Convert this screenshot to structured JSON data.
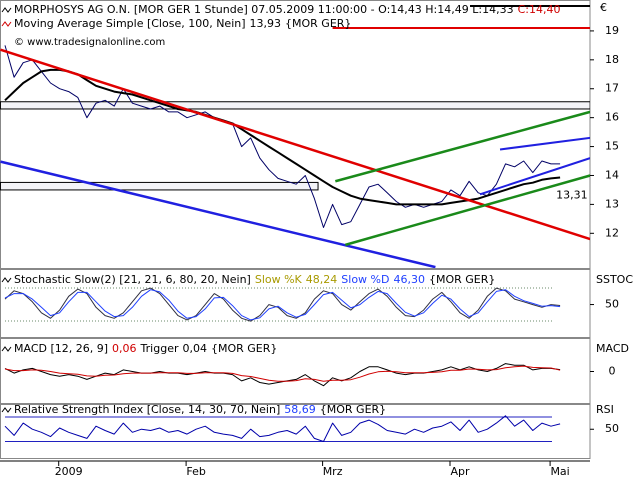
{
  "chart_data": [
    {
      "type": "line",
      "title": "MORPHOSYS AG O.N. [MOR GER  1 Stunde] 07.05.2009 11:00:00 - O:14,43 H:14,49 L:14,33",
      "close_label": "C:14,40",
      "close_color": "#d00000",
      "watermark": "© www.tradesignalonline.com",
      "axis_label": "€",
      "categories": [
        null,
        null,
        null,
        null,
        null,
        null,
        null,
        "2009",
        null,
        null,
        null,
        null,
        null,
        null,
        null,
        null,
        null,
        null,
        null,
        null,
        null,
        "Feb",
        null,
        null,
        null,
        null,
        null,
        null,
        null,
        null,
        null,
        null,
        null,
        null,
        null,
        null,
        "Mrz",
        null,
        null,
        null,
        null,
        null,
        null,
        null,
        null,
        null,
        null,
        null,
        null,
        null,
        "Apr",
        null,
        null,
        null,
        null,
        null,
        null,
        null,
        null,
        null,
        null,
        "Mai"
      ],
      "ylim": [
        10.8,
        20
      ],
      "yticks": [
        12,
        13,
        14,
        15,
        16,
        17,
        18,
        19
      ],
      "series": [
        {
          "color": "#000066",
          "width": 1,
          "values": [
            18.5,
            17.4,
            17.9,
            18.0,
            17.6,
            17.2,
            17.0,
            16.9,
            16.7,
            16.0,
            16.5,
            16.6,
            16.4,
            17.0,
            16.5,
            16.4,
            16.3,
            16.4,
            16.2,
            16.2,
            16.0,
            16.1,
            16.2,
            16.0,
            15.9,
            15.8,
            15.0,
            15.3,
            14.6,
            14.2,
            13.9,
            13.8,
            13.7,
            14.0,
            13.2,
            12.2,
            13.0,
            12.3,
            12.4,
            13.0,
            13.6,
            13.7,
            13.4,
            13.1,
            12.9,
            13.0,
            12.9,
            13.0,
            13.1,
            13.5,
            13.3,
            13.8,
            13.4,
            13.3,
            13.7,
            14.4,
            14.3,
            14.5,
            14.1,
            14.5,
            14.4,
            14.4
          ]
        },
        {
          "name": "Moving Average Simple [Close, 100, Nein]",
          "last_label": "13,93",
          "source": "{MOR GER}",
          "color": "#000000",
          "legend_color": "#000000",
          "width": 2,
          "values": [
            16.6,
            16.9,
            17.2,
            17.4,
            17.6,
            17.65,
            17.65,
            17.6,
            17.5,
            17.3,
            17.1,
            17.0,
            16.9,
            16.85,
            16.8,
            16.7,
            16.6,
            16.5,
            16.4,
            16.3,
            16.25,
            16.2,
            16.1,
            16.0,
            15.9,
            15.8,
            15.6,
            15.4,
            15.2,
            15.0,
            14.8,
            14.6,
            14.4,
            14.2,
            14.0,
            13.8,
            13.6,
            13.45,
            13.3,
            13.2,
            13.15,
            13.1,
            13.05,
            13.0,
            13.0,
            13.0,
            13.0,
            13.0,
            13.0,
            13.05,
            13.1,
            13.15,
            13.2,
            13.3,
            13.4,
            13.5,
            13.6,
            13.7,
            13.75,
            13.85,
            13.9,
            13.93
          ]
        }
      ],
      "bands": [
        {
          "x": [
            -0.5,
            64.3
          ],
          "values": [
            16.55,
            16.3
          ]
        },
        {
          "x": [
            -0.5,
            34.4
          ],
          "values": [
            13.76,
            13.5
          ]
        }
      ],
      "trendlines": [
        {
          "color": "#e00000",
          "width": 2.5,
          "x": [
            -0.5,
            64.3
          ],
          "values": [
            18.35,
            11.8
          ]
        },
        {
          "color": "#2020e0",
          "width": 2.5,
          "x": [
            -0.5,
            47.3
          ],
          "values": [
            14.48,
            10.83
          ]
        },
        {
          "color": "#1a8a1a",
          "width": 2.5,
          "x": [
            36.3,
            64.3
          ],
          "values": [
            13.8,
            16.2
          ]
        },
        {
          "color": "#1a8a1a",
          "width": 2.5,
          "x": [
            37.4,
            64.3
          ],
          "values": [
            11.6,
            14.0
          ]
        },
        {
          "color": "#2020e0",
          "width": 2,
          "x": [
            54.4,
            64.3
          ],
          "values": [
            14.9,
            15.3
          ]
        },
        {
          "color": "#2020e0",
          "width": 2,
          "x": [
            52.2,
            64.3
          ],
          "values": [
            13.35,
            14.6
          ]
        },
        {
          "color": "#000000",
          "width": 2,
          "x": [
            51.1,
            64.3
          ],
          "values": [
            19.86,
            19.86
          ]
        },
        {
          "color": "#e00000",
          "width": 2,
          "x": [
            36,
            64.3
          ],
          "values": [
            19.1,
            19.1
          ]
        }
      ],
      "annotations": [
        {
          "text": "13,31",
          "x": 62.3,
          "value": 13.31,
          "color": "#1a8a1a"
        }
      ]
    },
    {
      "type": "line",
      "title": "Stochastic Slow(2) [21, 21, 6, 80, 20, Nein]",
      "source": "{MOR GER}",
      "axis_label": "SSTOC",
      "ylim": [
        -9,
        111
      ],
      "yticks": [
        50
      ],
      "levels": [
        80,
        20
      ],
      "levels_color": "#6a8a6a",
      "series": [
        {
          "name": "Slow %K",
          "last_label": "48,24",
          "color": "#303040",
          "legend_color": "#a89a00",
          "width": 1,
          "values": [
            60,
            75,
            70,
            55,
            35,
            25,
            40,
            65,
            78,
            70,
            45,
            30,
            25,
            35,
            55,
            75,
            80,
            70,
            50,
            30,
            22,
            30,
            50,
            70,
            60,
            40,
            25,
            20,
            30,
            50,
            45,
            30,
            25,
            35,
            60,
            75,
            70,
            50,
            40,
            55,
            70,
            78,
            65,
            45,
            30,
            28,
            40,
            60,
            72,
            55,
            35,
            25,
            40,
            65,
            80,
            75,
            60,
            55,
            50,
            45,
            50,
            48.24
          ]
        },
        {
          "name": "Slow %D",
          "last_label": "46,30",
          "color": "#2040ff",
          "legend_color": "#2040ff",
          "width": 1,
          "values": [
            62,
            70,
            70,
            60,
            45,
            30,
            35,
            55,
            72,
            72,
            55,
            38,
            28,
            30,
            45,
            65,
            77,
            73,
            58,
            38,
            25,
            28,
            42,
            62,
            63,
            48,
            30,
            22,
            26,
            42,
            47,
            35,
            27,
            32,
            50,
            68,
            72,
            58,
            44,
            50,
            63,
            74,
            70,
            52,
            36,
            29,
            35,
            52,
            67,
            60,
            42,
            28,
            35,
            55,
            74,
            77,
            65,
            57,
            52,
            47,
            48,
            46.3
          ]
        }
      ]
    },
    {
      "type": "line",
      "source": "{MOR GER}",
      "axis_label": "MACD",
      "ylim": [
        -1,
        1
      ],
      "yticks": [
        0
      ],
      "series": [
        {
          "name": "MACD [12, 26, 9]",
          "last_label": "0,06",
          "color": "#000000",
          "legend_color": "#d00000",
          "width": 1,
          "values": [
            0.1,
            -0.05,
            0.05,
            0.1,
            0.0,
            -0.1,
            -0.15,
            -0.1,
            -0.15,
            -0.25,
            -0.15,
            -0.05,
            -0.1,
            0.05,
            0.0,
            -0.05,
            -0.05,
            0.0,
            -0.05,
            -0.05,
            -0.1,
            -0.05,
            0.0,
            -0.05,
            -0.05,
            -0.1,
            -0.3,
            -0.2,
            -0.35,
            -0.4,
            -0.35,
            -0.3,
            -0.25,
            -0.1,
            -0.3,
            -0.45,
            -0.2,
            -0.3,
            -0.2,
            0.0,
            0.15,
            0.15,
            0.05,
            -0.05,
            -0.1,
            -0.05,
            -0.05,
            0.0,
            0.05,
            0.15,
            0.05,
            0.15,
            0.05,
            0.0,
            0.1,
            0.25,
            0.2,
            0.2,
            0.05,
            0.1,
            0.1,
            0.06
          ]
        },
        {
          "name": "Trigger",
          "last_label": "0,04",
          "color": "#d00000",
          "legend_color": "#000000",
          "width": 1,
          "values": [
            0.08,
            0.03,
            0.03,
            0.05,
            0.04,
            0.0,
            -0.05,
            -0.07,
            -0.09,
            -0.14,
            -0.15,
            -0.12,
            -0.11,
            -0.07,
            -0.05,
            -0.05,
            -0.05,
            -0.04,
            -0.04,
            -0.04,
            -0.06,
            -0.06,
            -0.04,
            -0.04,
            -0.04,
            -0.06,
            -0.13,
            -0.16,
            -0.22,
            -0.28,
            -0.31,
            -0.31,
            -0.29,
            -0.23,
            -0.25,
            -0.31,
            -0.28,
            -0.28,
            -0.26,
            -0.18,
            -0.08,
            -0.01,
            0.01,
            -0.01,
            -0.04,
            -0.04,
            -0.04,
            -0.03,
            -0.01,
            0.04,
            0.04,
            0.08,
            0.07,
            0.05,
            0.06,
            0.12,
            0.15,
            0.17,
            0.13,
            0.12,
            0.11,
            0.04
          ]
        }
      ]
    },
    {
      "type": "line",
      "source": "{MOR GER}",
      "axis_label": "RSI",
      "ylim": [
        3,
        88
      ],
      "yticks": [
        50
      ],
      "levels": [
        70,
        30
      ],
      "levels_color": "#2020c0",
      "series": [
        {
          "name": "Relative Strength Index [Close, 14, 30, 70, Nein]",
          "last_label": "58,69",
          "color": "#0000aa",
          "legend_color": "#2040ff",
          "width": 1,
          "values": [
            55,
            40,
            60,
            50,
            45,
            38,
            52,
            45,
            40,
            35,
            55,
            48,
            42,
            60,
            45,
            50,
            48,
            52,
            45,
            48,
            42,
            50,
            55,
            45,
            42,
            40,
            35,
            50,
            38,
            40,
            45,
            48,
            42,
            55,
            35,
            30,
            60,
            40,
            45,
            60,
            65,
            58,
            48,
            45,
            42,
            50,
            45,
            52,
            55,
            62,
            48,
            65,
            45,
            50,
            60,
            72,
            55,
            65,
            48,
            60,
            55,
            58.69
          ]
        }
      ]
    }
  ]
}
